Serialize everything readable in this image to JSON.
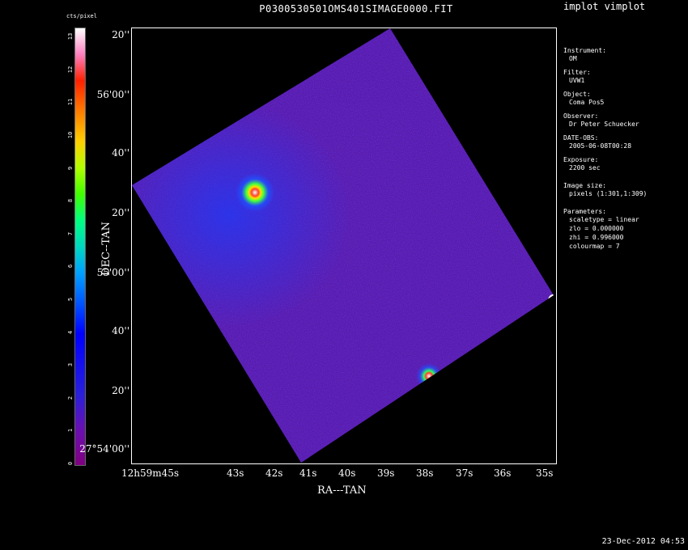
{
  "title": "P0300530501OMS401SIMAGE0000.FIT",
  "app_name": "implot vimplot",
  "timestamp": "23-Dec-2012 04:53",
  "colorbar": {
    "unit": "cts/pixel",
    "ticks": [
      "0",
      "1",
      "2",
      "3",
      "4",
      "5",
      "6",
      "7",
      "8",
      "9",
      "10",
      "11",
      "12",
      "13"
    ]
  },
  "axes": {
    "x_title": "RA---TAN",
    "y_title": "DEC--TAN",
    "x_ticks": [
      "12h59m45s",
      "43s",
      "42s",
      "41s",
      "40s",
      "39s",
      "38s",
      "37s",
      "36s",
      "35s"
    ],
    "y_ticks": [
      "20''",
      "56'00''",
      "40''",
      "20''",
      "55'00''",
      "40''",
      "20''",
      "27°54'00''"
    ]
  },
  "info": {
    "instrument_label": "Instrument:",
    "instrument": "OM",
    "filter_label": "Filter:",
    "filter": "UVW1",
    "object_label": "Object:",
    "object": "Coma Pos5",
    "observer_label": "Observer:",
    "observer": "Dr Peter Schuecker",
    "date_label": "DATE-OBS:",
    "date": "2005-06-08T00:28",
    "exposure_label": "Exposure:",
    "exposure": "2200 sec",
    "image_size_label": "Image size:",
    "image_size": "pixels (1:301,1:309)",
    "parameters_label": "Parameters:",
    "scaletype": "scaletype = linear",
    "zlo": "zlo = 0.000000",
    "zhi": "zhi = 0.996000",
    "colourmap": "colourmap =   7"
  },
  "colors": {
    "background": "#000000",
    "image_base": "#5a1aa8",
    "noise_blue": "#2a3cf0"
  }
}
